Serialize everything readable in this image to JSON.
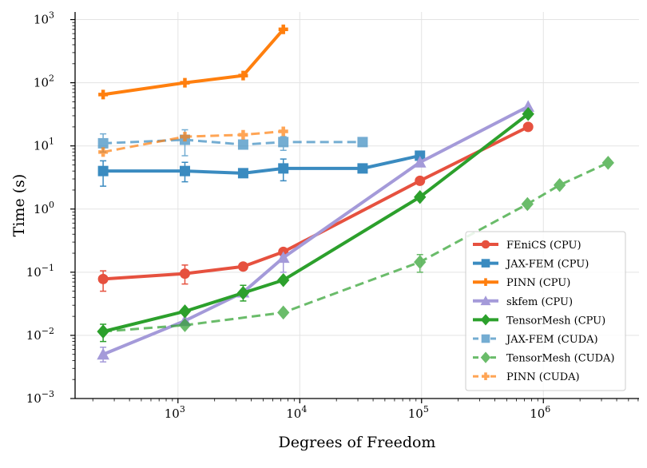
{
  "chart_data": {
    "type": "line",
    "xlabel": "Degrees of Freedom",
    "ylabel": "Time (s)",
    "xscale": "log",
    "yscale": "log",
    "xlim": [
      143,
      6100000
    ],
    "ylim": [
      0.001,
      1320
    ],
    "xticks": [
      {
        "v": 1000,
        "base": "10",
        "exp": "3"
      },
      {
        "v": 10000,
        "base": "10",
        "exp": "4"
      },
      {
        "v": 100000,
        "base": "10",
        "exp": "5"
      },
      {
        "v": 1000000,
        "base": "10",
        "exp": "6"
      }
    ],
    "yticks": [
      {
        "v": 0.001,
        "base": "10",
        "exp": "−3"
      },
      {
        "v": 0.01,
        "base": "10",
        "exp": "−2"
      },
      {
        "v": 0.1,
        "base": "10",
        "exp": "−1"
      },
      {
        "v": 1,
        "base": "10",
        "exp": "0"
      },
      {
        "v": 10,
        "base": "10",
        "exp": "1"
      },
      {
        "v": 100,
        "base": "10",
        "exp": "2"
      },
      {
        "v": 1000,
        "base": "10",
        "exp": "3"
      }
    ],
    "grid": true,
    "legend_placement": "lower-right",
    "series": [
      {
        "name": "FEniCS (CPU)",
        "color": "#e6513f",
        "marker": "circle",
        "dashed": false,
        "alpha": 1,
        "x": [
          243,
          1140,
          3430,
          7330,
          97000,
          750000
        ],
        "y": [
          0.078,
          0.095,
          0.123,
          0.21,
          2.8,
          20
        ],
        "err": [
          [
            0.05,
            0.105
          ],
          [
            0.065,
            0.13
          ],
          null,
          null,
          null,
          null
        ]
      },
      {
        "name": "JAX-FEM (CPU)",
        "color": "#3a8bc0",
        "marker": "square",
        "dashed": false,
        "alpha": 1,
        "x": [
          243,
          1140,
          3430,
          7330,
          32800,
          97000
        ],
        "y": [
          4.0,
          4.0,
          3.7,
          4.4,
          4.4,
          7.0
        ],
        "err": [
          [
            2.3,
            5.8
          ],
          [
            2.7,
            5.5
          ],
          null,
          [
            2.8,
            6.2
          ],
          null,
          null
        ]
      },
      {
        "name": "PINN (CPU)",
        "color": "#ff7f0e",
        "marker": "plus",
        "dashed": false,
        "alpha": 1,
        "x": [
          243,
          1140,
          3430,
          7330
        ],
        "y": [
          65,
          100,
          130,
          700
        ],
        "err": [
          null,
          null,
          null,
          null
        ]
      },
      {
        "name": "skfem (CPU)",
        "color": "#a49ad9",
        "marker": "triangle",
        "dashed": false,
        "alpha": 1,
        "x": [
          243,
          1140,
          3430,
          7330,
          97000,
          750000
        ],
        "y": [
          0.005,
          0.017,
          0.048,
          0.17,
          5.5,
          42
        ],
        "err": [
          [
            0.0038,
            0.0065
          ],
          null,
          null,
          [
            0.1,
            0.18
          ],
          null,
          null
        ]
      },
      {
        "name": "TensorMesh (CPU)",
        "color": "#2ca02c",
        "marker": "diamond",
        "dashed": false,
        "alpha": 1,
        "x": [
          243,
          1140,
          3430,
          7330,
          97000,
          750000
        ],
        "y": [
          0.0115,
          0.024,
          0.047,
          0.075,
          1.55,
          32
        ],
        "err": [
          [
            0.008,
            0.015
          ],
          null,
          [
            0.035,
            0.062
          ],
          null,
          null,
          null
        ]
      },
      {
        "name": "JAX-FEM (CUDA)",
        "color": "#3a8bc0",
        "marker": "square",
        "dashed": true,
        "alpha": 0.7,
        "x": [
          243,
          1140,
          3430,
          7330,
          32800
        ],
        "y": [
          11,
          12.5,
          10.5,
          11.5,
          11.5
        ],
        "err": [
          [
            8,
            15.5
          ],
          [
            7,
            18
          ],
          null,
          [
            8.5,
            14
          ],
          null
        ]
      },
      {
        "name": "TensorMesh (CUDA)",
        "color": "#2ca02c",
        "marker": "diamond",
        "dashed": true,
        "alpha": 0.7,
        "x": [
          243,
          1140,
          7330,
          97000,
          740000,
          1360000,
          3400000
        ],
        "y": [
          0.0115,
          0.0145,
          0.023,
          0.145,
          1.2,
          2.4,
          5.4
        ],
        "err": [
          null,
          null,
          null,
          [
            0.1,
            0.19
          ],
          null,
          null,
          null
        ]
      },
      {
        "name": "PINN (CUDA)",
        "color": "#ff7f0e",
        "marker": "plus",
        "dashed": true,
        "alpha": 0.7,
        "x": [
          243,
          1140,
          3430,
          7330
        ],
        "y": [
          8,
          14,
          15,
          17
        ],
        "err": [
          null,
          null,
          null,
          null
        ]
      }
    ]
  }
}
